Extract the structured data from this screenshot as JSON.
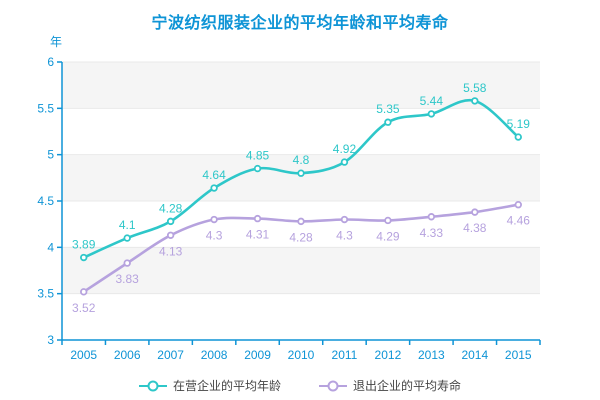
{
  "title": "宁波纺织服装企业的平均年龄和平均寿命",
  "colors": {
    "title": "#0e94d6",
    "axis": "#0e94d6",
    "grid": "#e9e9e9",
    "split_band": "rgba(200,200,200,0.18)",
    "legend_text": "#444444",
    "series1": "#2ec7c9",
    "series2": "#b6a2de"
  },
  "chart_data": {
    "type": "line",
    "title": "宁波纺织服装企业的平均年龄和平均寿命",
    "xlabel": "",
    "ylabel": "年",
    "ylim": [
      3,
      6
    ],
    "yticks": [
      "6",
      "5.5",
      "5",
      "4.5",
      "4",
      "3.5",
      "3"
    ],
    "grid": true,
    "smooth": true,
    "legend_position": "bottom",
    "categories": [
      "2005",
      "2006",
      "2007",
      "2008",
      "2009",
      "2010",
      "2011",
      "2012",
      "2013",
      "2014",
      "2015"
    ],
    "series": [
      {
        "name": "在营企业的平均年龄",
        "color": "#2ec7c9",
        "label_position": "top",
        "values": [
          3.89,
          4.1,
          4.28,
          4.64,
          4.85,
          4.8,
          4.92,
          5.35,
          5.44,
          5.58,
          5.19
        ],
        "labels": [
          "3.89",
          "4.1",
          "4.28",
          "4.64",
          "4.85",
          "4.8",
          "4.92",
          "5.35",
          "5.44",
          "5.58",
          "5.19"
        ]
      },
      {
        "name": "退出企业的平均寿命",
        "color": "#b6a2de",
        "label_position": "bottom",
        "values": [
          3.52,
          3.83,
          4.13,
          4.3,
          4.31,
          4.28,
          4.3,
          4.29,
          4.33,
          4.38,
          4.46
        ],
        "labels": [
          "3.52",
          "3.83",
          "4.13",
          "4.3",
          "4.31",
          "4.28",
          "4.3",
          "4.29",
          "4.33",
          "4.38",
          "4.46"
        ]
      }
    ]
  }
}
